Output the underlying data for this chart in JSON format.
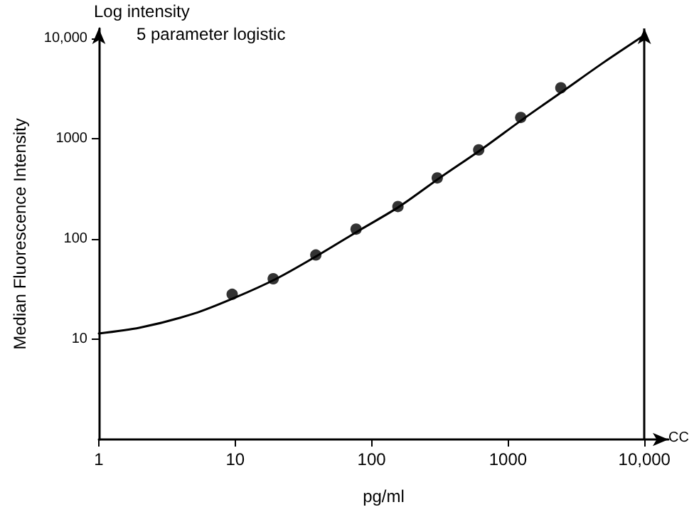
{
  "chart_data": {
    "type": "scatter",
    "xlabel": "pg/ml",
    "ylabel": "Median Fluorescence Intensity",
    "log": "xy",
    "grid": false,
    "marker": "circle",
    "annotations": [
      "Log intensity",
      "5 parameter logistic",
      "CC"
    ],
    "xlim": [
      1,
      15000
    ],
    "ylim": [
      1,
      12500
    ],
    "xticks": [
      1,
      10,
      100,
      1000,
      {
        "value": 10000,
        "label": "10,000"
      }
    ],
    "yticks": [
      10,
      100,
      1000,
      {
        "value": 10000,
        "label": "10,000"
      }
    ],
    "ref_lines": [
      {
        "axis": "x",
        "value": 10000,
        "color": "#000000"
      }
    ],
    "series": [
      {
        "color": "#000000",
        "x": [
          9.5,
          19,
          39,
          77,
          156,
          303,
          610,
          1240,
          2440
        ],
        "values": [
          28,
          40,
          69,
          125,
          210,
          405,
          770,
          1620,
          3200
        ]
      },
      {
        "type": "line",
        "color": "#000000",
        "marker": "none",
        "line_style": "solid",
        "x": [
          1,
          2,
          5,
          10,
          20,
          40,
          80,
          160,
          320,
          640,
          1280,
          2560,
          5000,
          10000
        ],
        "values": [
          11.4,
          13,
          18,
          26,
          40,
          68,
          120,
          210,
          410,
          780,
          1550,
          3000,
          5700,
          10700
        ]
      }
    ]
  }
}
